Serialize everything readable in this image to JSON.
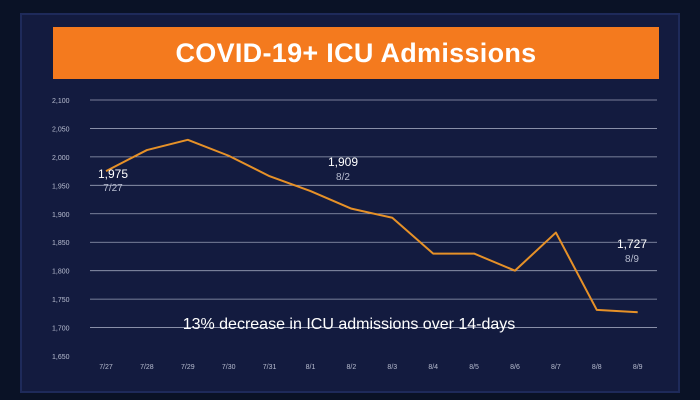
{
  "title": "COVID-19+ ICU Admissions",
  "colors": {
    "background": "#131b3f",
    "title_bar": "#f47a1e",
    "line": "#e69128",
    "grid": "#c8cde0",
    "text": "#ffffff",
    "tick_text": "#b8bdd0"
  },
  "chart_data": {
    "type": "line",
    "title": "COVID-19+ ICU Admissions",
    "xlabel": "",
    "ylabel": "",
    "categories": [
      "7/27",
      "7/28",
      "7/29",
      "7/30",
      "7/31",
      "8/1",
      "8/2",
      "8/3",
      "8/4",
      "8/5",
      "8/6",
      "8/7",
      "8/8",
      "8/9"
    ],
    "values": [
      1975,
      2012,
      2030,
      2002,
      1966,
      1940,
      1909,
      1893,
      1830,
      1830,
      1800,
      1867,
      1731,
      1727
    ],
    "ylim": [
      1650,
      2100
    ],
    "yticks": [
      1650,
      1700,
      1750,
      1800,
      1850,
      1900,
      1950,
      2000,
      2050,
      2100
    ],
    "ytick_labels": [
      "1,650",
      "1,700",
      "1,750",
      "1,800",
      "1,850",
      "1,900",
      "1,950",
      "2,000",
      "2,050",
      "2,100"
    ],
    "grid": true,
    "annotations": [
      {
        "index": 0,
        "value": "1,975",
        "date": "7/27"
      },
      {
        "index": 6,
        "value": "1,909",
        "date": "8/2"
      },
      {
        "index": 13,
        "value": "1,727",
        "date": "8/9"
      }
    ],
    "note": "13% decrease in ICU admissions over 14-days"
  }
}
